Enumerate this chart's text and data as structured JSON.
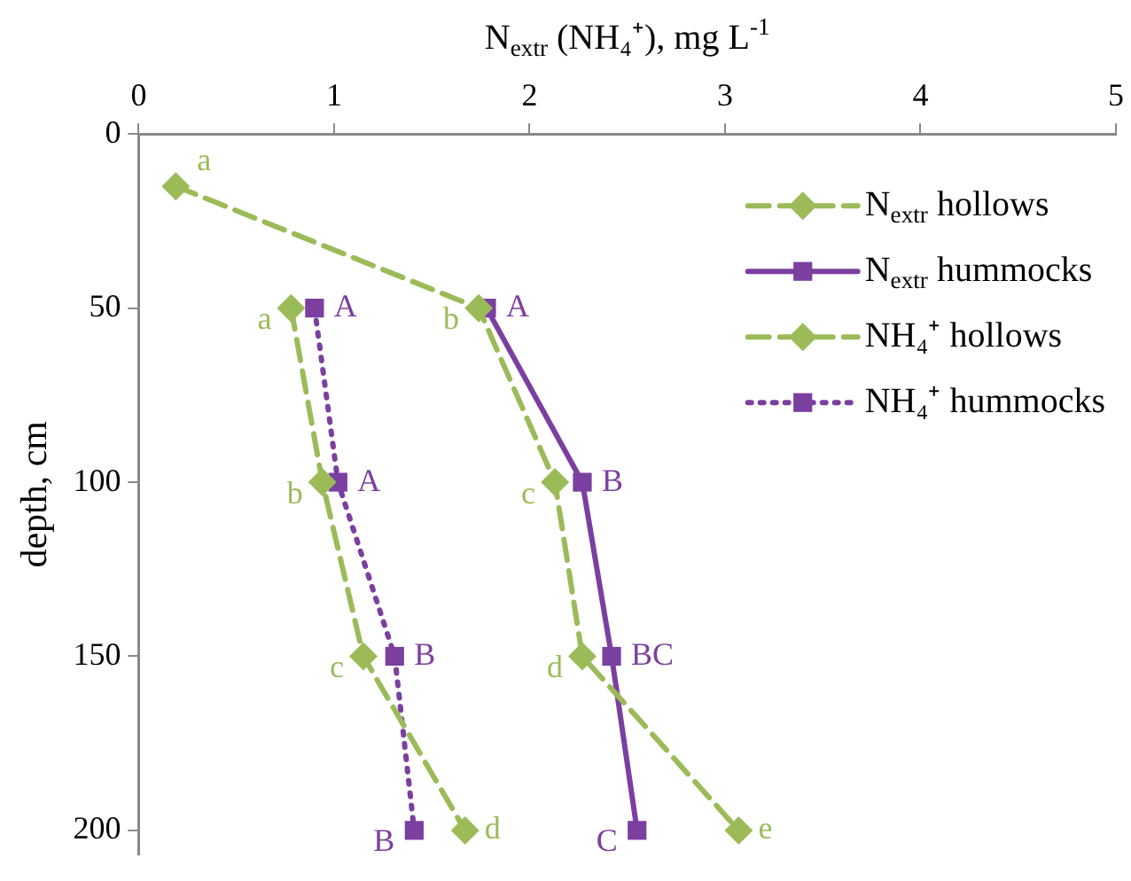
{
  "chart_data": {
    "type": "line",
    "xlabel": "N$_{extr}$ (NH₄⁺), mg L$^{-1}$",
    "ylabel": "depth, cm",
    "xlim": [
      0,
      5
    ],
    "xticks": [
      0,
      1,
      2,
      3,
      4,
      5
    ],
    "ylim": [
      207,
      0
    ],
    "yticks": [
      0,
      50,
      100,
      150,
      200
    ],
    "grid": false,
    "legend": "top right",
    "series": [
      {
        "name": "N$_{extr}$ hollows",
        "color": "#9bbb59",
        "marker": "diamond",
        "line_style": "dashed",
        "x": [
          0.19,
          1.74,
          2.13,
          2.27,
          3.07
        ],
        "values": [
          15,
          50,
          100,
          150,
          200
        ],
        "value_labels": [
          "a",
          "b",
          "c",
          "d",
          "e"
        ]
      },
      {
        "name": "N$_{extr}$ hummocks",
        "color": "#7b3fa0",
        "marker": "square",
        "line_style": "solid",
        "x": [
          1.78,
          2.27,
          2.42,
          2.55
        ],
        "values": [
          50,
          100,
          150,
          200
        ],
        "value_labels": [
          "A",
          "B",
          "BC",
          "C"
        ]
      },
      {
        "name": "NH₄⁺ hollows",
        "color": "#9bbb59",
        "marker": "diamond",
        "line_style": "dashed",
        "x": [
          0.78,
          0.94,
          1.15,
          1.67
        ],
        "values": [
          50,
          100,
          150,
          200
        ],
        "value_labels": [
          "a",
          "b",
          "c",
          "d"
        ]
      },
      {
        "name": "NH₄⁺ hummocks",
        "color": "#7b3fa0",
        "marker": "square",
        "line_style": "dotted",
        "x": [
          0.9,
          1.02,
          1.31,
          1.41
        ],
        "values": [
          50,
          100,
          150,
          200
        ],
        "value_labels": [
          "A",
          "A",
          "B",
          "B"
        ]
      }
    ]
  }
}
